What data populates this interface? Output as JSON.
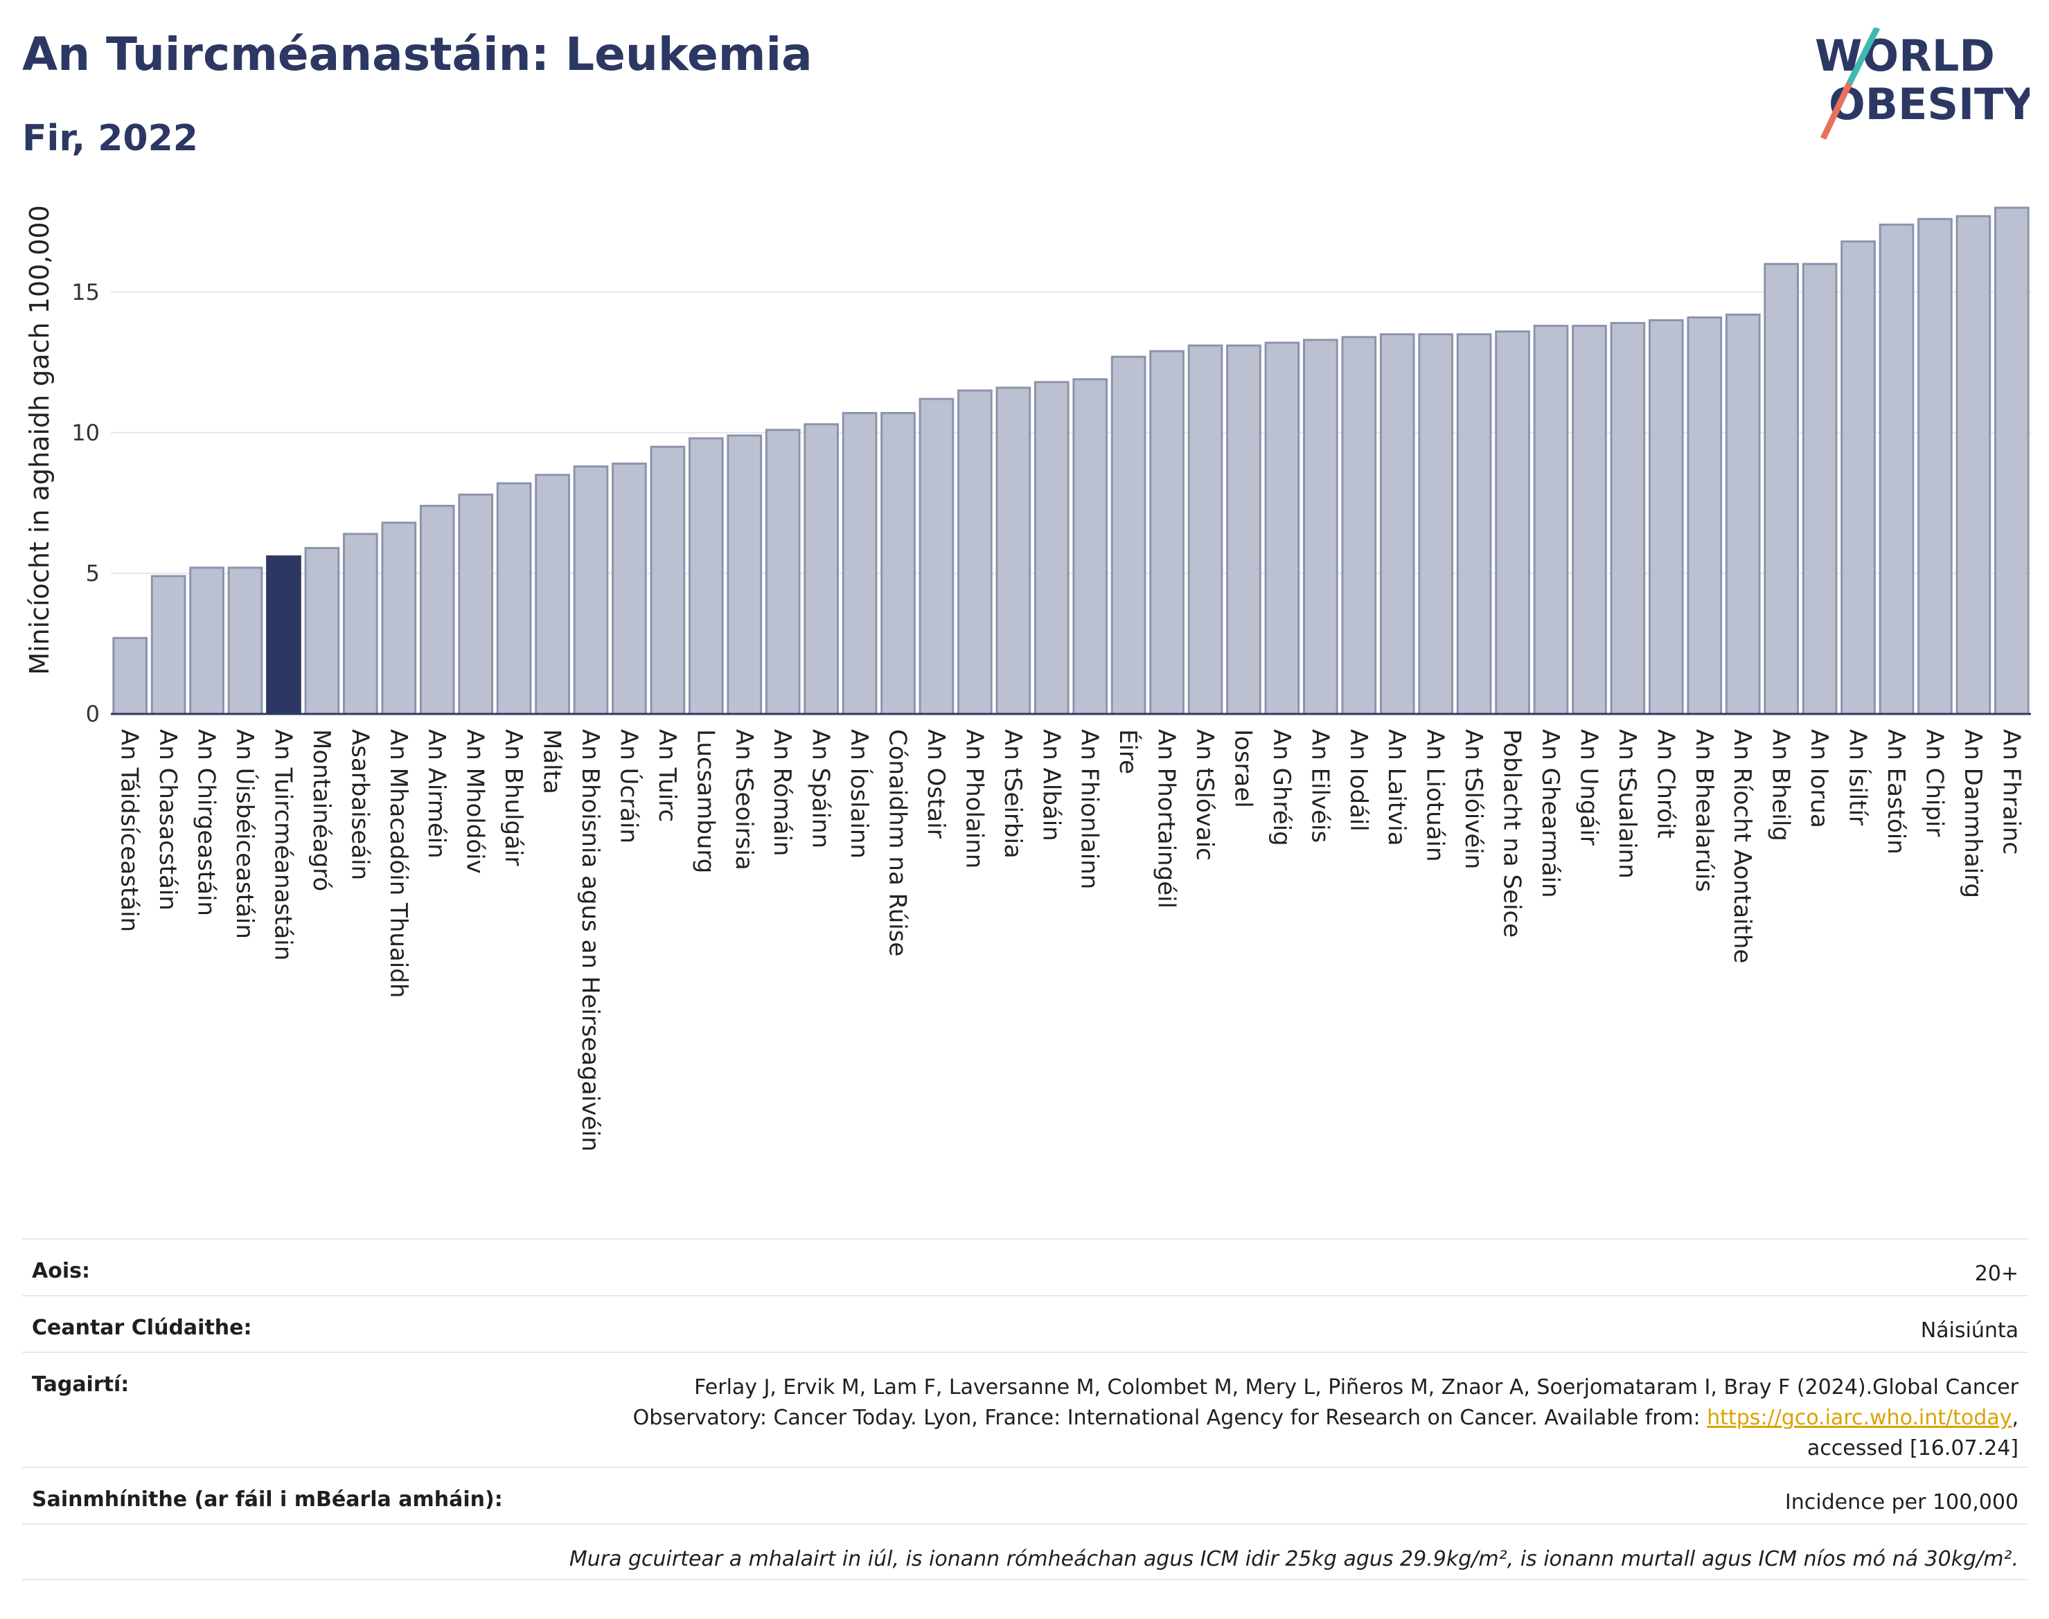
{
  "header": {
    "title": "An Tuircméanastáin: Leukemia",
    "subtitle": "Fir, 2022",
    "logo_line1": "WORLD",
    "logo_line2": "OBESITY"
  },
  "colors": {
    "title": "#2c3863",
    "bar": "#bcc1d1",
    "bar_stroke": "#8c93ad",
    "highlight": "#2c3863",
    "logo_teal": "#3fb8b0",
    "logo_coral": "#e8705e",
    "link": "#d9a300"
  },
  "chart_data": {
    "type": "bar",
    "ylabel": "Minicíocht in aghaidh gach 100,000",
    "ylim": [
      0,
      18
    ],
    "yticks": [
      0,
      5,
      10,
      15
    ],
    "grid": true,
    "highlight": "An Tuircméanastáin",
    "categories": [
      "An Táidsíceastáin",
      "An Chasacstáin",
      "An Chirgeastáin",
      "An Úisbéiceastáin",
      "An Tuircméanastáin",
      "Montainéagró",
      "Asarbaiseáin",
      "An Mhacadóin Thuaidh",
      "An Airméin",
      "An Mholdóiv",
      "An Bhulgáir",
      "Málta",
      "An Bhoisnia agus an Heirseagaivéin",
      "An Úcráin",
      "An Tuirc",
      "Lucsamburg",
      "An tSeoirsia",
      "An Rómáin",
      "An Spáinn",
      "An Íoslainn",
      "Cónaidhm na Rúise",
      "An Ostair",
      "An Pholainn",
      "An tSeirbia",
      "An Albáin",
      "An Fhionlainn",
      "Éire",
      "An Phortaingéil",
      "An tSlóvaic",
      "Iosrael",
      "An Ghréig",
      "An Eilvéis",
      "An Iodáil",
      "An Laitvia",
      "An Liotuáin",
      "An tSlóivéin",
      "Poblacht na Seice",
      "An Ghearmáin",
      "An Ungáir",
      "An tSualainn",
      "An Chróit",
      "An Bhealarúis",
      "An Ríocht Aontaithe",
      "An Bheilg",
      "An Iorua",
      "An Ísiltír",
      "An Eastóin",
      "An Chipir",
      "An Danmhairg",
      "An Fhrainc"
    ],
    "values": [
      2.7,
      4.9,
      5.2,
      5.2,
      5.6,
      5.9,
      6.4,
      6.8,
      7.4,
      7.8,
      8.2,
      8.5,
      8.8,
      8.9,
      9.5,
      9.8,
      9.9,
      10.1,
      10.3,
      10.7,
      10.7,
      11.2,
      11.5,
      11.6,
      11.8,
      11.9,
      12.7,
      12.9,
      13.1,
      13.1,
      13.2,
      13.3,
      13.4,
      13.5,
      13.5,
      13.5,
      13.6,
      13.8,
      13.8,
      13.9,
      14.0,
      14.1,
      14.2,
      16.0,
      16.0,
      16.8,
      17.4,
      17.6,
      17.7,
      18.0
    ]
  },
  "info": {
    "age_label": "Aois:",
    "age_value": "20+",
    "area_label": "Ceantar Clúdaithe:",
    "area_value": "Náisiúnta",
    "ref_label": "Tagairtí:",
    "ref_line1": "Ferlay J, Ervik M, Lam F, Laversanne M, Colombet M, Mery L, Piñeros M, Znaor A, Soerjomataram I, Bray F (2024).Global Cancer",
    "ref_line2_pre": "Observatory: Cancer Today. Lyon, France: International Agency for Research on Cancer. Available from: ",
    "ref_link": "https://gco.iarc.who.int/today",
    "ref_line2_post": ",",
    "ref_line3": "accessed [16.07.24]",
    "def_label": "Sainmhínithe (ar fáil i mBéarla amháin):",
    "def_value": "Incidence per 100,000",
    "note": "Mura gcuirtear a mhalairt in iúl, is ionann rómheáchan agus ICM idir 25kg agus 29.9kg/m², is ionann murtall agus ICM níos mó ná 30kg/m²."
  }
}
